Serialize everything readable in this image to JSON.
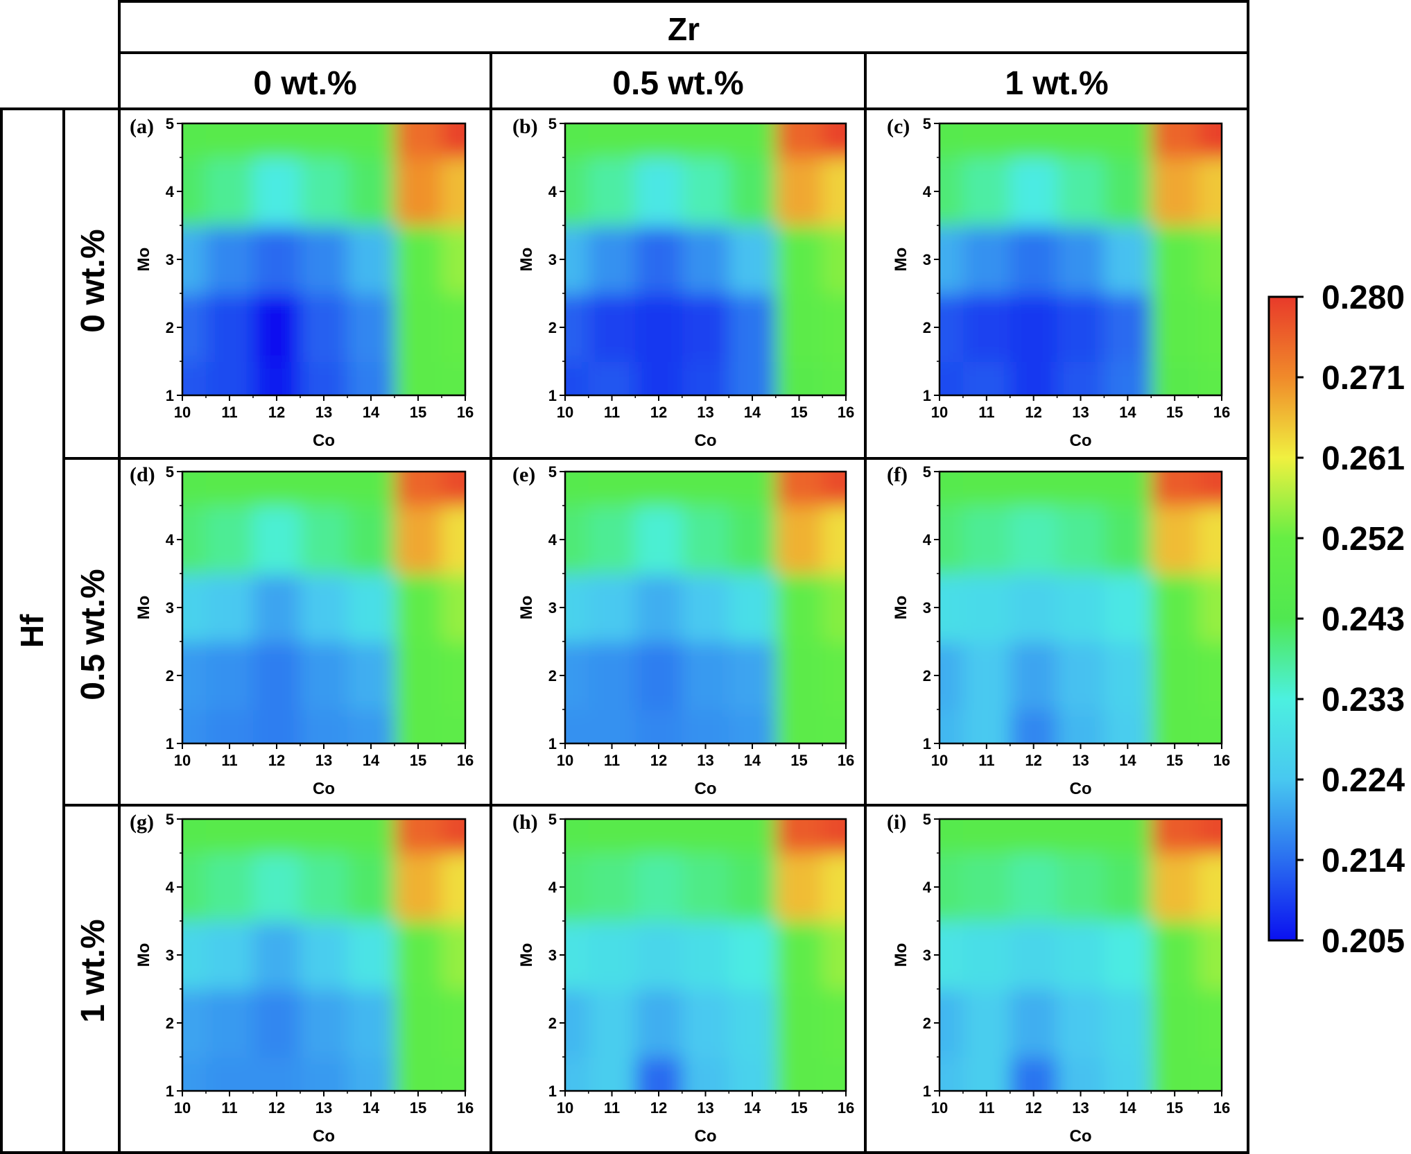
{
  "column_header": {
    "title": "Zr",
    "levels": [
      "0 wt.%",
      "0.5 wt.%",
      "1 wt.%"
    ]
  },
  "row_header": {
    "title": "Hf",
    "levels": [
      "0 wt.%",
      "0.5 wt.%",
      "1 wt.%"
    ]
  },
  "colorbar": {
    "min": 0.205,
    "max": 0.28,
    "ticks": [
      "0.280",
      "0.271",
      "0.261",
      "0.252",
      "0.243",
      "0.233",
      "0.224",
      "0.214",
      "0.205"
    ],
    "colors": [
      "#0a10f0",
      "#2a6ef0",
      "#48c8f0",
      "#4cf0e0",
      "#50e850",
      "#66ee44",
      "#f0f040",
      "#f08a2a",
      "#e83a2a"
    ]
  },
  "chart_data": [
    {
      "type": "heatmap",
      "label": "(a)",
      "Zr": "0 wt.%",
      "Hf": "0 wt.%",
      "xlabel": "Co",
      "ylabel": "Mo",
      "xlim": [
        10,
        16
      ],
      "ylim": [
        1,
        5
      ],
      "x_ticks": [
        "10",
        "11",
        "12",
        "13",
        "14",
        "15",
        "16"
      ],
      "y_ticks": [
        "1",
        "2",
        "3",
        "4",
        "5"
      ],
      "z": [
        [
          0.212,
          0.211,
          0.206,
          0.212,
          0.216,
          0.247,
          0.248
        ],
        [
          0.214,
          0.211,
          0.205,
          0.213,
          0.217,
          0.247,
          0.25
        ],
        [
          0.221,
          0.217,
          0.214,
          0.217,
          0.222,
          0.248,
          0.255
        ],
        [
          0.241,
          0.238,
          0.232,
          0.237,
          0.241,
          0.27,
          0.266
        ],
        [
          0.245,
          0.246,
          0.246,
          0.246,
          0.246,
          0.274,
          0.279
        ]
      ]
    },
    {
      "type": "heatmap",
      "label": "(b)",
      "Zr": "0.5 wt.%",
      "Hf": "0 wt.%",
      "xlabel": "Co",
      "ylabel": "Mo",
      "xlim": [
        10,
        16
      ],
      "ylim": [
        1,
        5
      ],
      "x_ticks": [
        "10",
        "11",
        "12",
        "13",
        "14",
        "15",
        "16"
      ],
      "y_ticks": [
        "1",
        "2",
        "3",
        "4",
        "5"
      ],
      "z": [
        [
          0.211,
          0.212,
          0.209,
          0.211,
          0.215,
          0.246,
          0.248
        ],
        [
          0.213,
          0.21,
          0.209,
          0.21,
          0.215,
          0.247,
          0.25
        ],
        [
          0.222,
          0.218,
          0.214,
          0.218,
          0.223,
          0.248,
          0.254
        ],
        [
          0.24,
          0.237,
          0.231,
          0.236,
          0.241,
          0.268,
          0.264
        ],
        [
          0.245,
          0.246,
          0.246,
          0.246,
          0.246,
          0.275,
          0.279
        ]
      ]
    },
    {
      "type": "heatmap",
      "label": "(c)",
      "Zr": "1 wt.%",
      "Hf": "0 wt.%",
      "xlabel": "Co",
      "ylabel": "Mo",
      "xlim": [
        10,
        16
      ],
      "ylim": [
        1,
        5
      ],
      "x_ticks": [
        "10",
        "11",
        "12",
        "13",
        "14",
        "15",
        "16"
      ],
      "y_ticks": [
        "1",
        "2",
        "3",
        "4",
        "5"
      ],
      "z": [
        [
          0.211,
          0.212,
          0.209,
          0.212,
          0.215,
          0.246,
          0.248
        ],
        [
          0.212,
          0.21,
          0.209,
          0.211,
          0.214,
          0.247,
          0.25
        ],
        [
          0.221,
          0.218,
          0.215,
          0.218,
          0.223,
          0.248,
          0.253
        ],
        [
          0.24,
          0.237,
          0.232,
          0.237,
          0.241,
          0.268,
          0.265
        ],
        [
          0.245,
          0.246,
          0.246,
          0.246,
          0.246,
          0.275,
          0.279
        ]
      ]
    },
    {
      "type": "heatmap",
      "label": "(d)",
      "Zr": "0 wt.%",
      "Hf": "0.5 wt.%",
      "xlabel": "Co",
      "ylabel": "Mo",
      "xlim": [
        10,
        16
      ],
      "ylim": [
        1,
        5
      ],
      "x_ticks": [
        "10",
        "11",
        "12",
        "13",
        "14",
        "15",
        "16"
      ],
      "y_ticks": [
        "1",
        "2",
        "3",
        "4",
        "5"
      ],
      "z": [
        [
          0.218,
          0.217,
          0.216,
          0.218,
          0.219,
          0.247,
          0.248
        ],
        [
          0.219,
          0.218,
          0.216,
          0.219,
          0.221,
          0.247,
          0.25
        ],
        [
          0.226,
          0.224,
          0.22,
          0.224,
          0.229,
          0.249,
          0.255
        ],
        [
          0.24,
          0.238,
          0.234,
          0.238,
          0.241,
          0.268,
          0.263
        ],
        [
          0.245,
          0.246,
          0.246,
          0.246,
          0.246,
          0.275,
          0.278
        ]
      ]
    },
    {
      "type": "heatmap",
      "label": "(e)",
      "Zr": "0.5 wt.%",
      "Hf": "0.5 wt.%",
      "xlabel": "Co",
      "ylabel": "Mo",
      "xlim": [
        10,
        16
      ],
      "ylim": [
        1,
        5
      ],
      "x_ticks": [
        "10",
        "11",
        "12",
        "13",
        "14",
        "15",
        "16"
      ],
      "y_ticks": [
        "1",
        "2",
        "3",
        "4",
        "5"
      ],
      "z": [
        [
          0.218,
          0.218,
          0.217,
          0.218,
          0.219,
          0.247,
          0.248
        ],
        [
          0.219,
          0.218,
          0.216,
          0.219,
          0.22,
          0.247,
          0.25
        ],
        [
          0.226,
          0.224,
          0.221,
          0.224,
          0.229,
          0.249,
          0.254
        ],
        [
          0.24,
          0.238,
          0.234,
          0.238,
          0.241,
          0.267,
          0.263
        ],
        [
          0.245,
          0.246,
          0.246,
          0.246,
          0.246,
          0.275,
          0.278
        ]
      ]
    },
    {
      "type": "heatmap",
      "label": "(f)",
      "Zr": "1 wt.%",
      "Hf": "0.5 wt.%",
      "xlabel": "Co",
      "ylabel": "Mo",
      "xlim": [
        10,
        16
      ],
      "ylim": [
        1,
        5
      ],
      "x_ticks": [
        "10",
        "11",
        "12",
        "13",
        "14",
        "15",
        "16"
      ],
      "y_ticks": [
        "1",
        "2",
        "3",
        "4",
        "5"
      ],
      "z": [
        [
          0.222,
          0.224,
          0.217,
          0.222,
          0.225,
          0.247,
          0.248
        ],
        [
          0.221,
          0.224,
          0.22,
          0.223,
          0.226,
          0.247,
          0.25
        ],
        [
          0.229,
          0.228,
          0.226,
          0.228,
          0.231,
          0.249,
          0.255
        ],
        [
          0.24,
          0.238,
          0.236,
          0.238,
          0.241,
          0.266,
          0.263
        ],
        [
          0.245,
          0.246,
          0.246,
          0.246,
          0.246,
          0.276,
          0.278
        ]
      ]
    },
    {
      "type": "heatmap",
      "label": "(g)",
      "Zr": "0 wt.%",
      "Hf": "1 wt.%",
      "xlabel": "Co",
      "ylabel": "Mo",
      "xlim": [
        10,
        16
      ],
      "ylim": [
        1,
        5
      ],
      "x_ticks": [
        "10",
        "11",
        "12",
        "13",
        "14",
        "15",
        "16"
      ],
      "y_ticks": [
        "1",
        "2",
        "3",
        "4",
        "5"
      ],
      "z": [
        [
          0.219,
          0.218,
          0.218,
          0.219,
          0.221,
          0.247,
          0.248
        ],
        [
          0.22,
          0.219,
          0.217,
          0.22,
          0.222,
          0.247,
          0.25
        ],
        [
          0.227,
          0.225,
          0.221,
          0.225,
          0.23,
          0.249,
          0.255
        ],
        [
          0.24,
          0.238,
          0.235,
          0.238,
          0.241,
          0.267,
          0.263
        ],
        [
          0.245,
          0.246,
          0.246,
          0.246,
          0.246,
          0.275,
          0.278
        ]
      ]
    },
    {
      "type": "heatmap",
      "label": "(h)",
      "Zr": "0.5 wt.%",
      "Hf": "1 wt.%",
      "xlabel": "Co",
      "ylabel": "Mo",
      "xlim": [
        10,
        16
      ],
      "ylim": [
        1,
        5
      ],
      "x_ticks": [
        "10",
        "11",
        "12",
        "13",
        "14",
        "15",
        "16"
      ],
      "y_ticks": [
        "1",
        "2",
        "3",
        "4",
        "5"
      ],
      "z": [
        [
          0.223,
          0.225,
          0.214,
          0.223,
          0.226,
          0.247,
          0.248
        ],
        [
          0.222,
          0.225,
          0.221,
          0.224,
          0.227,
          0.247,
          0.25
        ],
        [
          0.23,
          0.229,
          0.227,
          0.229,
          0.232,
          0.249,
          0.255
        ],
        [
          0.24,
          0.239,
          0.237,
          0.239,
          0.241,
          0.266,
          0.263
        ],
        [
          0.245,
          0.246,
          0.246,
          0.246,
          0.246,
          0.276,
          0.278
        ]
      ]
    },
    {
      "type": "heatmap",
      "label": "(i)",
      "Zr": "1 wt.%",
      "Hf": "1 wt.%",
      "xlabel": "Co",
      "ylabel": "Mo",
      "xlim": [
        10,
        16
      ],
      "ylim": [
        1,
        5
      ],
      "x_ticks": [
        "10",
        "11",
        "12",
        "13",
        "14",
        "15",
        "16"
      ],
      "y_ticks": [
        "1",
        "2",
        "3",
        "4",
        "5"
      ],
      "z": [
        [
          0.223,
          0.225,
          0.215,
          0.223,
          0.226,
          0.247,
          0.248
        ],
        [
          0.222,
          0.225,
          0.221,
          0.224,
          0.227,
          0.247,
          0.25
        ],
        [
          0.23,
          0.229,
          0.227,
          0.229,
          0.232,
          0.249,
          0.255
        ],
        [
          0.24,
          0.239,
          0.237,
          0.239,
          0.241,
          0.266,
          0.263
        ],
        [
          0.245,
          0.246,
          0.246,
          0.246,
          0.246,
          0.276,
          0.278
        ]
      ]
    }
  ]
}
